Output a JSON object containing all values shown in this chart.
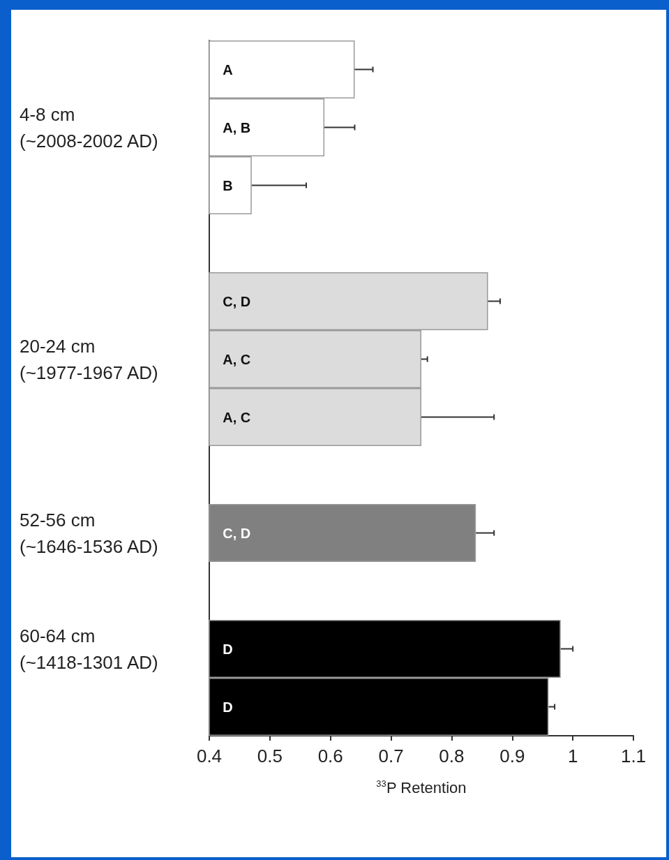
{
  "chart_data": {
    "type": "bar",
    "orientation": "horizontal",
    "xlabel": "$^{33}$P Retention",
    "categories": [
      null,
      "4-8 cm\n(~2008-2002 AD)",
      null,
      null,
      null,
      "20-24 cm\n(~1977-1967 AD)",
      null,
      null,
      "52-56 cm\n(~1646-1536 AD)",
      null,
      "60-64 cm\n(~1418-1301 AD)",
      null
    ],
    "values": [
      0.64,
      0.59,
      0.47,
      null,
      0.86,
      0.75,
      0.75,
      null,
      0.84,
      null,
      0.98,
      0.96
    ],
    "colors": [
      "#ffffff",
      "#ffffff",
      "#ffffff",
      null,
      "#dcdcdc",
      "#dcdcdc",
      "#dcdcdc",
      null,
      "#808080",
      null,
      "#000000",
      "#000000"
    ],
    "errors": [
      [
        0.64,
        0.67
      ],
      [
        0.59,
        0.64
      ],
      [
        0.47,
        0.56
      ],
      null,
      [
        0.86,
        0.88
      ],
      [
        0.75,
        0.76
      ],
      [
        0.75,
        0.87
      ],
      null,
      [
        0.84,
        0.87
      ],
      null,
      [
        0.98,
        1.0
      ],
      [
        0.96,
        0.97
      ]
    ],
    "value_labels": [
      "A",
      "A, B",
      "B",
      null,
      "C, D",
      "A, C",
      "A, C",
      null,
      "C, D",
      null,
      "D",
      "D"
    ],
    "xlim": [
      0.4,
      1.1
    ],
    "xticks": [
      0.4,
      0.5,
      0.6,
      0.7,
      0.8,
      0.9,
      1,
      1.1
    ],
    "grid": false
  }
}
